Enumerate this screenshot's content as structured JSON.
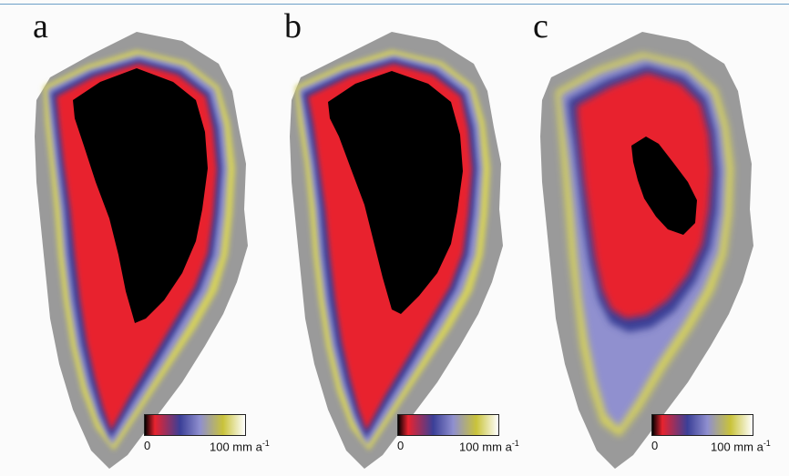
{
  "panels": [
    {
      "letter": "a",
      "scale_min": "0",
      "scale_max": "100 mm a",
      "scale_exp": "-1"
    },
    {
      "letter": "b",
      "scale_min": "0",
      "scale_max": "100 mm a",
      "scale_exp": "-1"
    },
    {
      "letter": "c",
      "scale_min": "0",
      "scale_max": "100 mm a",
      "scale_exp": "-1"
    }
  ],
  "colors": {
    "rock": "#9a9a9a",
    "core": "#000000",
    "red": "#e8232f",
    "blue": "#3b3f97",
    "lavender": "#8f8fcf",
    "yellow": "#c9c33a",
    "rule": "#6b9ec7"
  },
  "colorbar_stops": [
    "#000000",
    "#e8232f",
    "#3b3f97",
    "#8f8fcf",
    "#c9c33a",
    "#ffffff"
  ]
}
